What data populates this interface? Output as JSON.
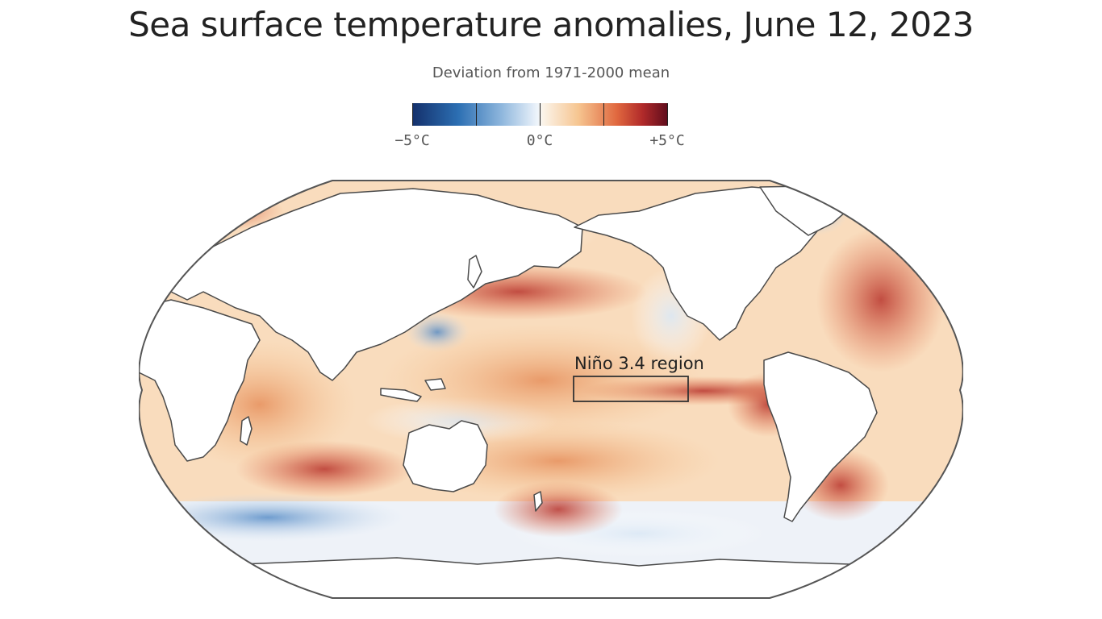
{
  "title": "Sea surface temperature anomalies, June 12, 2023",
  "subtitle": "Deviation from 1971-2000 mean",
  "legend": {
    "labels": [
      "−5°C",
      "0°C",
      "+5°C"
    ],
    "range": [
      -5,
      5
    ],
    "colors": [
      "#14306b",
      "#2c6fb3",
      "#8fb7dd",
      "#eef4fb",
      "#f6c590",
      "#e0683f",
      "#b12a2a",
      "#5e0c1c"
    ]
  },
  "annotation": {
    "label": "Niño 3.4 region"
  }
}
